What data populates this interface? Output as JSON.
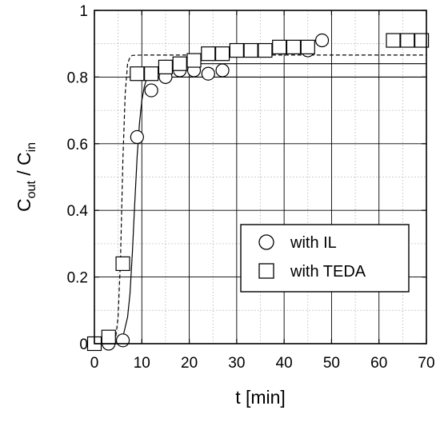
{
  "chart_data": {
    "type": "scatter",
    "xlabel": "t [min]",
    "ylabel": {
      "main": "C",
      "sub1": "out",
      "sep": " / C",
      "sub2": "in"
    },
    "xlim": [
      0,
      70
    ],
    "ylim": [
      0,
      1
    ],
    "xticks": [
      0,
      10,
      20,
      30,
      40,
      50,
      60,
      70
    ],
    "yticks": [
      0,
      0.2,
      0.4,
      0.6,
      0.8,
      1
    ],
    "ytick_labels": [
      "0",
      "0.2",
      "0.4",
      "0.6",
      "0.8",
      "1"
    ],
    "grid": true,
    "legend_position": "lower-right",
    "series": [
      {
        "name": "with IL",
        "marker": "circle",
        "x": [
          0,
          3,
          6,
          9,
          12,
          15,
          18,
          21,
          24,
          27,
          45,
          48
        ],
        "y": [
          0.0,
          0.0,
          0.01,
          0.62,
          0.76,
          0.8,
          0.82,
          0.82,
          0.81,
          0.82,
          0.88,
          0.91
        ]
      },
      {
        "name": "with TEDA",
        "marker": "square",
        "x": [
          0,
          3,
          6,
          9,
          12,
          15,
          18,
          21,
          24,
          27,
          30,
          33,
          36,
          39,
          42,
          45,
          63,
          66,
          69
        ],
        "y": [
          0.0,
          0.02,
          0.24,
          0.81,
          0.81,
          0.83,
          0.84,
          0.85,
          0.87,
          0.87,
          0.88,
          0.88,
          0.88,
          0.89,
          0.89,
          0.89,
          0.91,
          0.91,
          0.91
        ]
      }
    ],
    "fit_curves": [
      {
        "for": "with IL",
        "style": "solid",
        "x": [
          0,
          5,
          6,
          7,
          7.5,
          8,
          8.5,
          9,
          9.5,
          10,
          10.5,
          11,
          12,
          13,
          14,
          16,
          20,
          30,
          50,
          70
        ],
        "y": [
          0,
          0.005,
          0.02,
          0.08,
          0.15,
          0.27,
          0.42,
          0.56,
          0.66,
          0.73,
          0.77,
          0.795,
          0.815,
          0.825,
          0.83,
          0.835,
          0.84,
          0.84,
          0.84,
          0.84
        ]
      },
      {
        "for": "with TEDA",
        "style": "dashed",
        "x": [
          0,
          4,
          4.5,
          5,
          5.5,
          6,
          6.5,
          7,
          7.5,
          8,
          10,
          70
        ],
        "y": [
          0,
          0.005,
          0.02,
          0.08,
          0.25,
          0.55,
          0.75,
          0.84,
          0.86,
          0.865,
          0.866,
          0.866
        ]
      }
    ],
    "reference_lines": [
      {
        "style": "solid",
        "y": 0.8,
        "x_start": 7,
        "x_end": 70
      }
    ]
  }
}
